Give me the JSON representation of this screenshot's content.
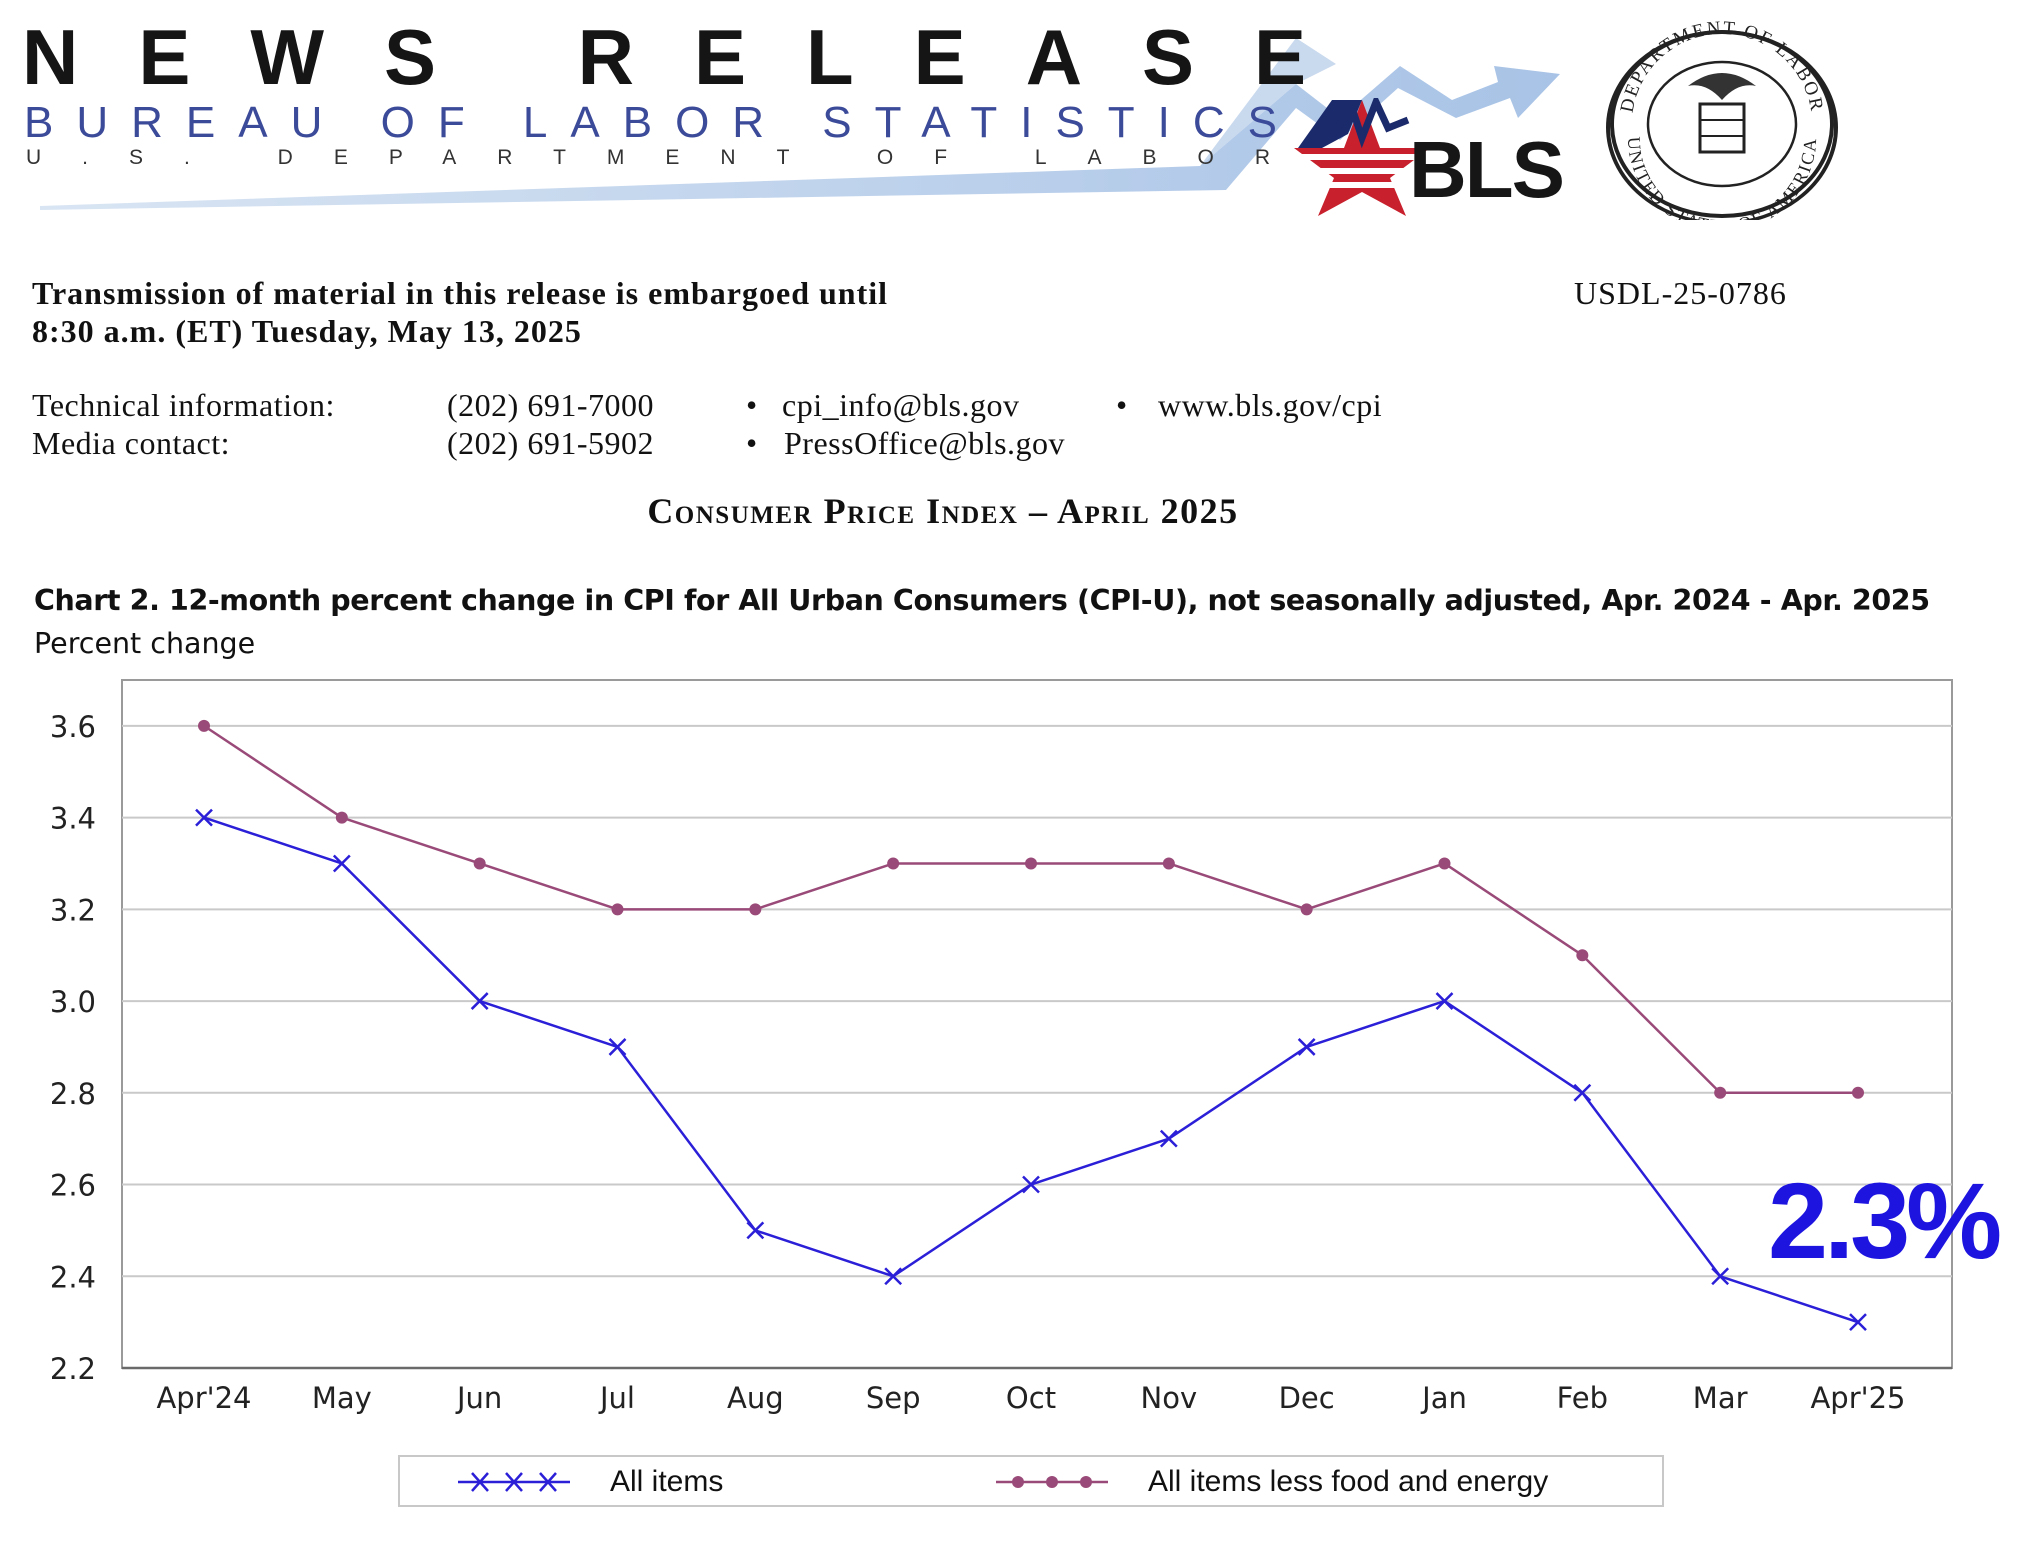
{
  "masthead": {
    "title": "NEWS RELEASE",
    "bureau": "BUREAU OF LABOR STATISTICS",
    "department": "U.S. DEPARTMENT OF LABOR",
    "logo_text": "BLS",
    "seal_top_text": "DEPARTMENT OF LABOR",
    "seal_bottom_text": "UNITED STATES OF AMERICA"
  },
  "release": {
    "embargo_line1": "Transmission of material in this release is embargoed until",
    "embargo_line2": "8:30 a.m. (ET) Tuesday, May 13, 2025",
    "release_number": "USDL-25-0786",
    "tech_label": "Technical information:",
    "tech_phone": "(202) 691-7000",
    "tech_email": "cpi_info@bls.gov",
    "tech_web": "www.bls.gov/cpi",
    "media_label": "Media contact:",
    "media_phone": "(202) 691-5902",
    "media_email": "PressOffice@bls.gov",
    "separator": "•",
    "report_title": "Consumer Price Index – April 2025"
  },
  "chart_data": {
    "type": "line",
    "title": "Chart 2. 12-month percent change in CPI for All Urban Consumers (CPI-U), not seasonally adjusted, Apr. 2024 - Apr. 2025",
    "ylabel": "Percent change",
    "xlabel": "",
    "categories": [
      "Apr'24",
      "May",
      "Jun",
      "Jul",
      "Aug",
      "Sep",
      "Oct",
      "Nov",
      "Dec",
      "Jan",
      "Feb",
      "Mar",
      "Apr'25"
    ],
    "ylim": [
      2.2,
      3.7
    ],
    "yticks": [
      "3.6",
      "3.4",
      "3.2",
      "3.0",
      "2.8",
      "2.6",
      "2.4",
      "2.2"
    ],
    "grid": true,
    "legend_position": "bottom",
    "series": [
      {
        "name": "All items",
        "marker": "x",
        "color": "#2b1fd8",
        "values": [
          3.4,
          3.3,
          3.0,
          2.9,
          2.5,
          2.4,
          2.6,
          2.7,
          2.9,
          3.0,
          2.8,
          2.4,
          2.3
        ]
      },
      {
        "name": "All items less food and energy",
        "marker": "circle",
        "color": "#9a4a78",
        "values": [
          3.6,
          3.4,
          3.3,
          3.2,
          3.2,
          3.3,
          3.3,
          3.3,
          3.2,
          3.3,
          3.1,
          2.8,
          2.8
        ]
      }
    ],
    "annotation": {
      "text": "2.3%",
      "color": "#1d14e0"
    }
  }
}
